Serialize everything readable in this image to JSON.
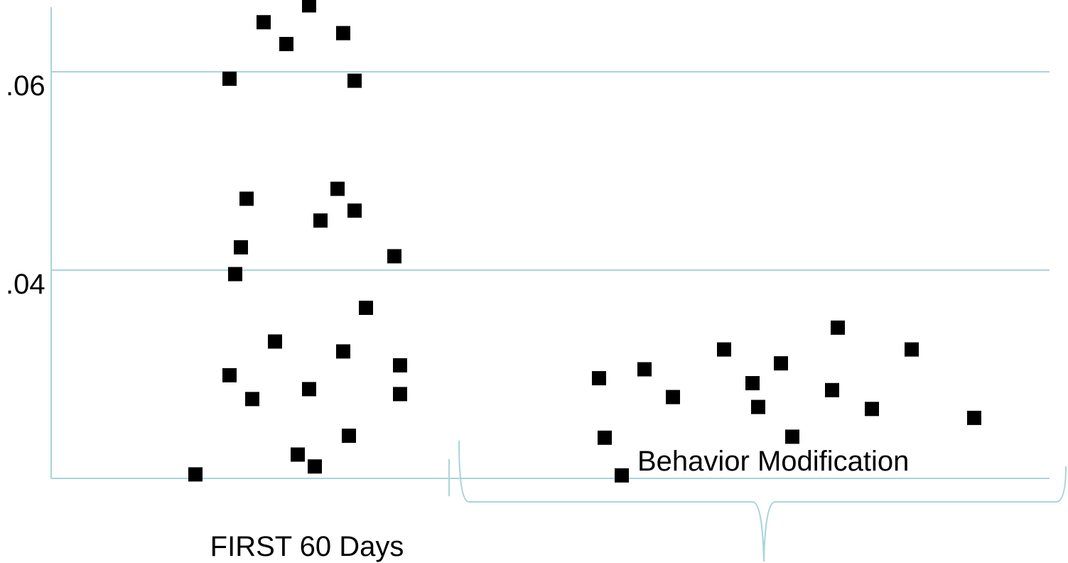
{
  "chart_data": {
    "type": "scatter",
    "title": "",
    "xlabel": "",
    "ylabel": "",
    "ylim": [
      0.019,
      0.0665
    ],
    "y_ticks": [
      {
        "value": 0.06,
        "label": ".06"
      },
      {
        "value": 0.04,
        "label": ".04"
      }
    ],
    "grid": true,
    "colors": {
      "marker": "#000000",
      "gridline": "#a8d4dc",
      "bracket": "#a8d4dc"
    },
    "phases": [
      {
        "label": "FIRST 60 Days",
        "x_range": [
          0,
          62
        ]
      },
      {
        "label": "Behavior Modification",
        "x_range": [
          62,
          190
        ]
      }
    ],
    "series": [
      {
        "points": [
          {
            "x": 15,
            "y": 0.0194
          },
          {
            "x": 21,
            "y": 0.0294
          },
          {
            "x": 21,
            "y": 0.0593
          },
          {
            "x": 22,
            "y": 0.0396
          },
          {
            "x": 23,
            "y": 0.0423
          },
          {
            "x": 24,
            "y": 0.0472
          },
          {
            "x": 25,
            "y": 0.027
          },
          {
            "x": 27,
            "y": 0.065
          },
          {
            "x": 29,
            "y": 0.0328
          },
          {
            "x": 31,
            "y": 0.0628
          },
          {
            "x": 33,
            "y": 0.0214
          },
          {
            "x": 35,
            "y": 0.028
          },
          {
            "x": 35,
            "y": 0.0667
          },
          {
            "x": 36,
            "y": 0.0202
          },
          {
            "x": 37,
            "y": 0.045
          },
          {
            "x": 40,
            "y": 0.0482
          },
          {
            "x": 41,
            "y": 0.0318
          },
          {
            "x": 41,
            "y": 0.0639
          },
          {
            "x": 42,
            "y": 0.0233
          },
          {
            "x": 43,
            "y": 0.046
          },
          {
            "x": 43,
            "y": 0.0591
          },
          {
            "x": 45,
            "y": 0.0362
          },
          {
            "x": 50,
            "y": 0.0414
          },
          {
            "x": 51,
            "y": 0.0304
          },
          {
            "x": 51,
            "y": 0.0275
          },
          {
            "x": 86,
            "y": 0.0291
          },
          {
            "x": 87,
            "y": 0.0231
          },
          {
            "x": 90,
            "y": 0.0193
          },
          {
            "x": 94,
            "y": 0.03
          },
          {
            "x": 99,
            "y": 0.0272
          },
          {
            "x": 108,
            "y": 0.032
          },
          {
            "x": 113,
            "y": 0.0286
          },
          {
            "x": 114,
            "y": 0.0262
          },
          {
            "x": 118,
            "y": 0.0306
          },
          {
            "x": 120,
            "y": 0.0232
          },
          {
            "x": 127,
            "y": 0.0279
          },
          {
            "x": 128,
            "y": 0.0342
          },
          {
            "x": 134,
            "y": 0.026
          },
          {
            "x": 141,
            "y": 0.032
          },
          {
            "x": 152,
            "y": 0.0251
          }
        ]
      }
    ]
  }
}
